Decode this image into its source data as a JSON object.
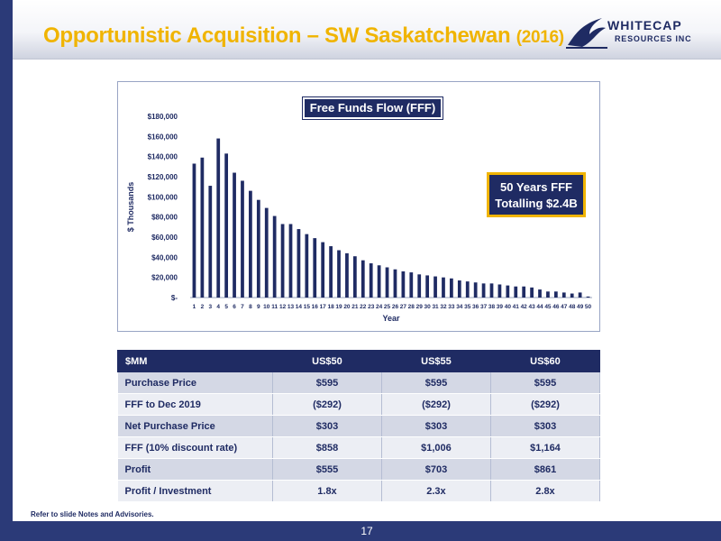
{
  "slide": {
    "title": "Opportunistic Acquisition – SW Saskatchewan",
    "title_year": "(2016)",
    "footnote": "Refer to slide Notes and Advisories.",
    "page_number": "17"
  },
  "logo": {
    "line1": "WHITECAP",
    "line2": "RESOURCES INC",
    "icon": "wave-icon"
  },
  "colors": {
    "navy": "#1f2b63",
    "accent_gold": "#f0b400",
    "bar_color": "#1f2b63"
  },
  "chart_data": {
    "type": "bar",
    "title": "Free Funds Flow (FFF)",
    "xlabel": "Year",
    "ylabel": "$ Thousands",
    "ylim": [
      0,
      180000
    ],
    "yticks": [
      0,
      20000,
      40000,
      60000,
      80000,
      100000,
      120000,
      140000,
      160000,
      180000
    ],
    "ytick_labels": [
      "$-",
      "$20,000",
      "$40,000",
      "$60,000",
      "$80,000",
      "$100,000",
      "$120,000",
      "$140,000",
      "$160,000",
      "$180,000"
    ],
    "categories": [
      "1",
      "2",
      "3",
      "4",
      "5",
      "6",
      "7",
      "8",
      "9",
      "10",
      "11",
      "12",
      "13",
      "14",
      "15",
      "16",
      "17",
      "18",
      "19",
      "20",
      "21",
      "22",
      "23",
      "24",
      "25",
      "26",
      "27",
      "28",
      "29",
      "30",
      "31",
      "32",
      "33",
      "34",
      "35",
      "36",
      "37",
      "38",
      "39",
      "40",
      "41",
      "42",
      "43",
      "44",
      "45",
      "46",
      "47",
      "48",
      "49",
      "50"
    ],
    "values": [
      133000,
      139000,
      111000,
      158000,
      143000,
      124000,
      116000,
      106000,
      97000,
      89000,
      81000,
      73000,
      73000,
      68000,
      63000,
      59000,
      55000,
      51000,
      47000,
      44000,
      41000,
      37000,
      34000,
      32000,
      30000,
      28000,
      26000,
      25000,
      23000,
      22000,
      21000,
      20000,
      19000,
      17000,
      16000,
      15000,
      14000,
      14000,
      13000,
      12000,
      11000,
      11000,
      10000,
      8000,
      6000,
      6000,
      5000,
      4000,
      5000,
      1000
    ],
    "grid": false,
    "legend": "none",
    "annotation": [
      "50 Years FFF",
      "Totalling $2.4B"
    ]
  },
  "table": {
    "headers": [
      "$MM",
      "US$50",
      "US$55",
      "US$60"
    ],
    "rows": [
      [
        "Purchase Price",
        "$595",
        "$595",
        "$595"
      ],
      [
        "FFF to Dec 2019",
        "($292)",
        "($292)",
        "($292)"
      ],
      [
        "Net Purchase Price",
        "$303",
        "$303",
        "$303"
      ],
      [
        "FFF (10% discount rate)",
        "$858",
        "$1,006",
        "$1,164"
      ],
      [
        "Profit",
        "$555",
        "$703",
        "$861"
      ],
      [
        "Profit / Investment",
        "1.8x",
        "2.3x",
        "2.8x"
      ]
    ]
  }
}
